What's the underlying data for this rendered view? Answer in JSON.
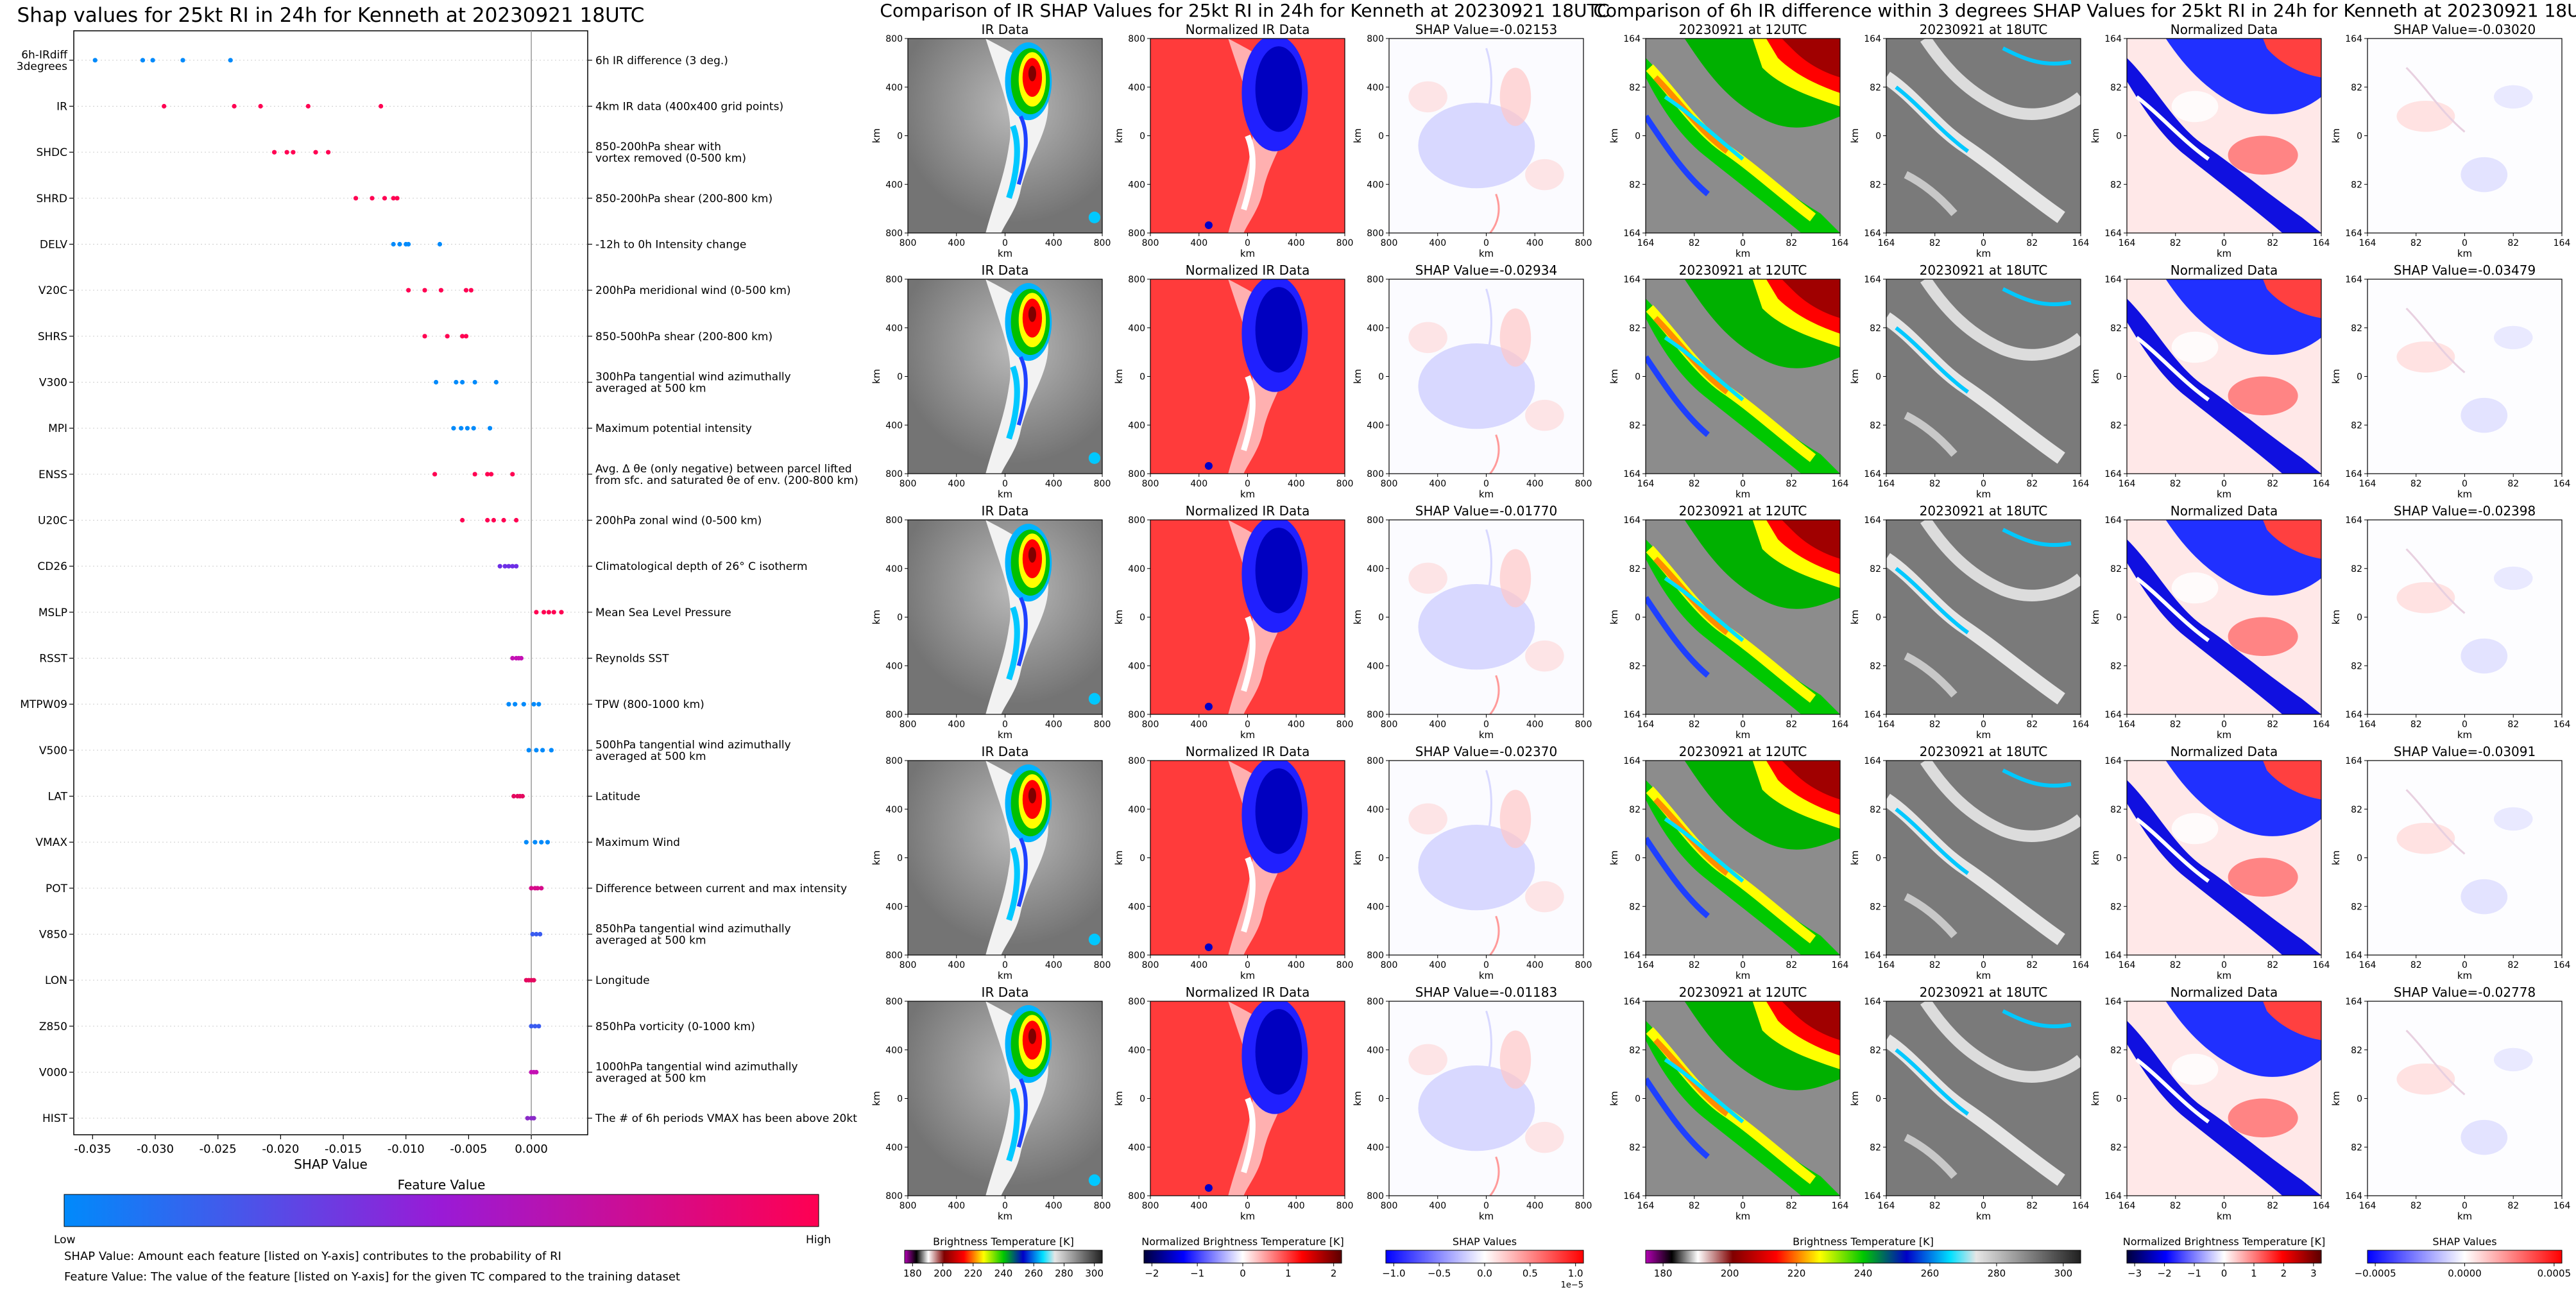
{
  "chart_data": [
    {
      "type": "scatter",
      "title": "Shap values for 25kt RI in 24h for Kenneth at 20230921 18UTC",
      "xlabel": "SHAP Value",
      "xlim": [
        -0.0365,
        0.0045
      ],
      "x_ticks": [
        "-0.035",
        "-0.030",
        "-0.025",
        "-0.020",
        "-0.015",
        "-0.010",
        "-0.005",
        "0.000"
      ],
      "x_tick_values": [
        -0.035,
        -0.03,
        -0.025,
        -0.02,
        -0.015,
        -0.01,
        -0.005,
        0.0
      ],
      "colorbar": {
        "title": "Feature Value",
        "low_label": "Low",
        "high_label": "High",
        "low_color": "#008afb",
        "mid_color": "#9a1ad6",
        "high_color": "#ff0052"
      },
      "notes": [
        "SHAP Value: Amount each feature [listed on Y-axis] contributes to the probability of RI",
        "Feature Value: The value of the feature [listed on Y-axis] for the given TC compared to the training dataset"
      ],
      "features": [
        {
          "name": "6h-IRdiff\n3degrees",
          "desc": "6h IR difference (3 deg.)",
          "points": [
            -0.0348,
            -0.031,
            -0.0302,
            -0.0278,
            -0.024
          ],
          "color": "#008afb"
        },
        {
          "name": "IR",
          "desc": "4km IR data (400x400 grid points)",
          "points": [
            -0.0293,
            -0.0237,
            -0.0216,
            -0.0178,
            -0.012
          ],
          "color": "#ff0052"
        },
        {
          "name": "SHDC",
          "desc": "850-200hPa shear with\nvortex removed (0-500 km)",
          "points": [
            -0.0205,
            -0.0195,
            -0.019,
            -0.0172,
            -0.0162
          ],
          "color": "#ff0052"
        },
        {
          "name": "SHRD",
          "desc": "850-200hPa shear (200-800 km)",
          "points": [
            -0.014,
            -0.0127,
            -0.0117,
            -0.011,
            -0.0107
          ],
          "color": "#ff0052"
        },
        {
          "name": "DELV",
          "desc": "-12h to 0h Intensity change",
          "points": [
            -0.011,
            -0.0105,
            -0.01,
            -0.0098,
            -0.0073
          ],
          "color": "#008afb"
        },
        {
          "name": "V20C",
          "desc": "200hPa meridional wind (0-500 km)",
          "points": [
            -0.0098,
            -0.0085,
            -0.0072,
            -0.0052,
            -0.0048
          ],
          "color": "#ff0052"
        },
        {
          "name": "SHRS",
          "desc": "850-500hPa shear (200-800 km)",
          "points": [
            -0.0085,
            -0.0067,
            -0.0055,
            -0.0052
          ],
          "color": "#ff0052"
        },
        {
          "name": "V300",
          "desc": "300hPa tangential wind azimuthally\naveraged at 500 km",
          "points": [
            -0.0076,
            -0.006,
            -0.0055,
            -0.0045,
            -0.0028
          ],
          "color": "#008afb"
        },
        {
          "name": "MPI",
          "desc": "Maximum potential intensity",
          "points": [
            -0.0062,
            -0.0056,
            -0.0051,
            -0.0046,
            -0.0033
          ],
          "color": "#008afb"
        },
        {
          "name": "ENSS",
          "desc": "Avg. Δ θe (only negative) between parcel lifted\nfrom sfc. and saturated θe of env. (200-800 km)",
          "points": [
            -0.0077,
            -0.0045,
            -0.0035,
            -0.0032,
            -0.0015
          ],
          "color": "#ff0052"
        },
        {
          "name": "U20C",
          "desc": "200hPa zonal wind (0-500 km)",
          "points": [
            -0.0055,
            -0.0035,
            -0.003,
            -0.0022,
            -0.0012
          ],
          "color": "#ff0052"
        },
        {
          "name": "CD26",
          "desc": "Climatological depth of 26° C isotherm",
          "points": [
            -0.0025,
            -0.0021,
            -0.0018,
            -0.0015,
            -0.0012
          ],
          "color": "#6d2ee6"
        },
        {
          "name": "MSLP",
          "desc": "Mean Sea Level Pressure",
          "points": [
            0.0004,
            0.001,
            0.0014,
            0.0018,
            0.0024
          ],
          "color": "#ff0052"
        },
        {
          "name": "RSST",
          "desc": "Reynolds SST",
          "points": [
            -0.0015,
            -0.0012,
            -0.001,
            -0.0008
          ],
          "color": "#c410b4"
        },
        {
          "name": "MTPW09",
          "desc": "TPW (800-1000 km)",
          "points": [
            -0.0018,
            -0.0013,
            -0.0006,
            0.0002,
            0.0006
          ],
          "color": "#008afb"
        },
        {
          "name": "V500",
          "desc": "500hPa tangential wind azimuthally\naveraged at 500 km",
          "points": [
            -0.0002,
            0.0004,
            0.0009,
            0.0016
          ],
          "color": "#008afb"
        },
        {
          "name": "LAT",
          "desc": "Latitude",
          "points": [
            -0.0014,
            -0.0011,
            -0.0009,
            -0.0007
          ],
          "color": "#e4095f"
        },
        {
          "name": "VMAX",
          "desc": "Maximum Wind",
          "points": [
            -0.0004,
            0.0003,
            0.0008,
            0.0013
          ],
          "color": "#008afb"
        },
        {
          "name": "POT",
          "desc": "Difference between current and max intensity",
          "points": [
            0.0,
            0.0003,
            0.0005,
            0.0008
          ],
          "color": "#d60a8a"
        },
        {
          "name": "V850",
          "desc": "850hPa tangential wind azimuthally\naveraged at 500 km",
          "points": [
            0.0001,
            0.0004,
            0.0007
          ],
          "color": "#3a5cf0"
        },
        {
          "name": "LON",
          "desc": "Longitude",
          "points": [
            -0.0004,
            -0.0002,
            0.0,
            0.0002
          ],
          "color": "#e4095f"
        },
        {
          "name": "Z850",
          "desc": "850hPa vorticity (0-1000 km)",
          "points": [
            0.0,
            0.0003,
            0.0006
          ],
          "color": "#3a5cf0"
        },
        {
          "name": "V000",
          "desc": "1000hPa tangential wind azimuthally\naveraged at 500 km",
          "points": [
            0.0,
            0.0002,
            0.0004
          ],
          "color": "#c410b4"
        },
        {
          "name": "HIST",
          "desc": "The # of 6h periods VMAX has been above 20kt",
          "points": [
            -0.0003,
            0.0,
            0.0002
          ],
          "color": "#8a2ac8"
        }
      ]
    },
    {
      "type": "heatmap",
      "title": "Comparison of IR SHAP Values for 25kt RI in 24h for Kenneth at 20230921 18UTC",
      "panel_titles": [
        "IR Data",
        "Normalized IR Data"
      ],
      "shap_titles": [
        "SHAP Value=-0.02153",
        "SHAP Value=-0.02934",
        "SHAP Value=-0.01770",
        "SHAP Value=-0.02370",
        "SHAP Value=-0.01183"
      ],
      "axis_label": "km",
      "x_ticks": [
        "800",
        "400",
        "0",
        "400",
        "800"
      ],
      "y_ticks": [
        "800",
        "400",
        "0",
        "400",
        "800"
      ],
      "colorbars": [
        {
          "label": "Brightness Temperature [K]",
          "ticks": [
            "180",
            "200",
            "220",
            "240",
            "260",
            "280",
            "300"
          ]
        },
        {
          "label": "Normalized Brightness Temperature [K]",
          "ticks": [
            "−2",
            "−1",
            "0",
            "1",
            "2"
          ]
        },
        {
          "label": "SHAP Values",
          "ticks": [
            "−1.0",
            "−0.5",
            "0.0",
            "0.5",
            "1.0"
          ],
          "offset": "1e−5"
        }
      ]
    },
    {
      "type": "heatmap",
      "title": "Comparison of 6h IR difference within 3 degrees SHAP Values for 25kt RI in 24h for Kenneth at 20230921 18UTC",
      "panel_titles": [
        "20230921 at 12UTC",
        "20230921 at 18UTC",
        "Normalized Data"
      ],
      "shap_titles": [
        "SHAP Value=-0.03020",
        "SHAP Value=-0.03479",
        "SHAP Value=-0.02398",
        "SHAP Value=-0.03091",
        "SHAP Value=-0.02778"
      ],
      "axis_label": "km",
      "x_ticks": [
        "164",
        "82",
        "0",
        "82",
        "164"
      ],
      "y_ticks": [
        "164",
        "82",
        "0",
        "82",
        "164"
      ],
      "colorbars": [
        {
          "label": "Brightness Temperature [K]",
          "ticks": [
            "180",
            "200",
            "220",
            "240",
            "260",
            "280",
            "300"
          ]
        },
        {
          "label": "Normalized Brightness Temperature [K]",
          "ticks": [
            "−3",
            "−2",
            "−1",
            "0",
            "1",
            "2",
            "3"
          ]
        },
        {
          "label": "SHAP Values",
          "ticks": [
            "−0.0005",
            "0.0000",
            "0.0005"
          ]
        }
      ]
    }
  ]
}
